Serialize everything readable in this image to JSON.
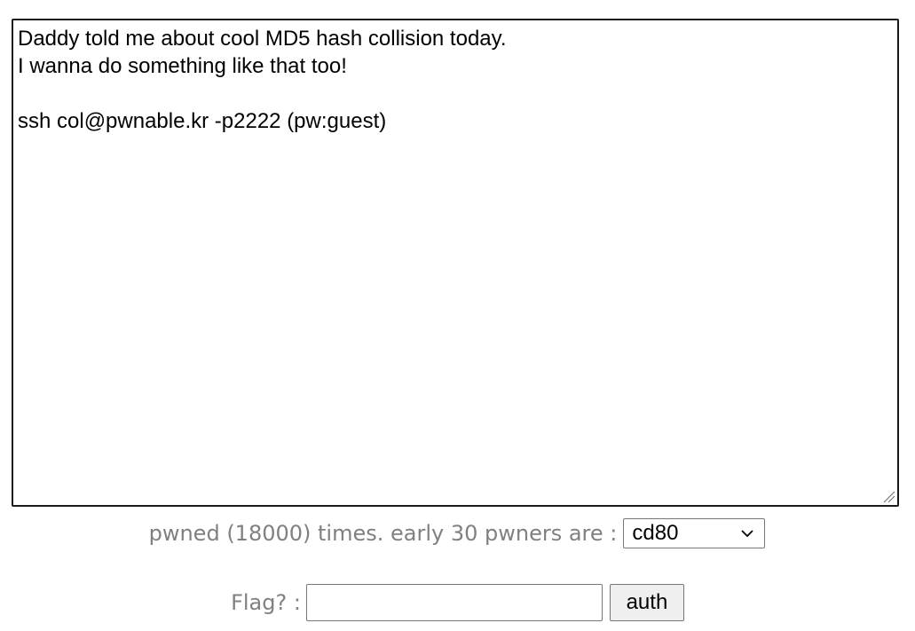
{
  "challenge": {
    "description": "Daddy told me about cool MD5 hash collision today.\nI wanna do something like that too!\n\nssh col@pwnable.kr -p2222 (pw:guest)"
  },
  "stats": {
    "pwned_text": "pwned (18000) times. early 30 pwners are :",
    "pwners_selected": "cd80"
  },
  "flag_form": {
    "label": "Flag? :",
    "input_value": "",
    "input_placeholder": "",
    "submit_label": "auth"
  },
  "icons": {
    "dropdown": "chevron-down-icon",
    "resize": "resize-grip-icon"
  }
}
